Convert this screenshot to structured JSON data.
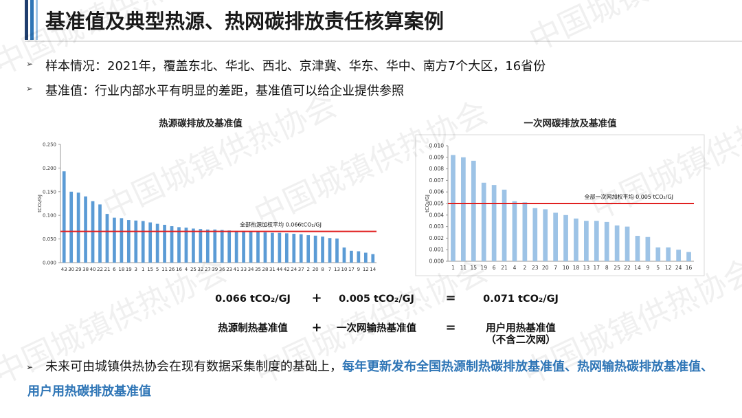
{
  "header": {
    "title": "基准值及典型热源、热网碳排放责任核算案例"
  },
  "watermark": "中国城镇供热协会",
  "bullets": [
    "样本情况：2021年，覆盖东北、华北、西北、京津冀、华东、华中、南方7个大区，16省份",
    "基准值：行业内部水平有明显的差距，基准值可以给企业提供参照"
  ],
  "chart_data": [
    {
      "type": "bar",
      "title": "热源碳排放及基准值",
      "y_label": "tCO₂/GJ",
      "color": "#5b9bd5",
      "categories": [
        "43",
        "30",
        "29",
        "38",
        "40",
        "22",
        "21",
        "6",
        "18",
        "19",
        "3",
        "1",
        "15",
        "5",
        "11",
        "26",
        "16",
        "4",
        "25",
        "32",
        "27",
        "39",
        "36",
        "23",
        "41",
        "33",
        "34",
        "35",
        "28",
        "31",
        "44",
        "42",
        "24",
        "37",
        "2",
        "20",
        "8",
        "7",
        "13",
        "10",
        "17",
        "9",
        "12",
        "14"
      ],
      "values": [
        0.193,
        0.15,
        0.148,
        0.14,
        0.13,
        0.123,
        0.103,
        0.095,
        0.094,
        0.09,
        0.089,
        0.088,
        0.085,
        0.082,
        0.08,
        0.077,
        0.075,
        0.074,
        0.072,
        0.071,
        0.07,
        0.07,
        0.069,
        0.068,
        0.067,
        0.067,
        0.066,
        0.065,
        0.064,
        0.063,
        0.063,
        0.062,
        0.061,
        0.06,
        0.058,
        0.057,
        0.055,
        0.052,
        0.051,
        0.032,
        0.025,
        0.024,
        0.021,
        0.018
      ],
      "ylim": [
        0,
        0.25
      ],
      "yticks": [
        {
          "value": 0,
          "label": "0.000"
        },
        {
          "value": 0.05,
          "label": "0.050"
        },
        {
          "value": 0.1,
          "label": "0.100"
        },
        {
          "value": 0.15,
          "label": "0.150"
        },
        {
          "value": 0.2,
          "label": "0.200"
        },
        {
          "value": 0.25,
          "label": "0.250"
        }
      ],
      "reference": {
        "value": 0.066,
        "label": "全部热源加权平均 0.066tCO₂/GJ",
        "color": "#e02020"
      }
    },
    {
      "type": "bar",
      "title": "一次网碳排放及基准值",
      "y_label": "tCO₂/GJ",
      "color": "#9dc3e6",
      "categories": [
        "1",
        "11",
        "15",
        "19",
        "6",
        "21",
        "4",
        "2",
        "23",
        "20",
        "7",
        "10",
        "18",
        "13",
        "17",
        "8",
        "25",
        "22",
        "14",
        "9",
        "5",
        "12",
        "24",
        "16"
      ],
      "values": [
        0.0092,
        0.009,
        0.0087,
        0.0068,
        0.0066,
        0.0062,
        0.0052,
        0.0051,
        0.0046,
        0.0045,
        0.0042,
        0.004,
        0.0037,
        0.0035,
        0.0035,
        0.0034,
        0.0031,
        0.003,
        0.0022,
        0.0021,
        0.0012,
        0.0012,
        0.001,
        0.0008
      ],
      "ylim": [
        0,
        0.01
      ],
      "yticks": [
        {
          "value": 0,
          "label": "0.000"
        },
        {
          "value": 0.001,
          "label": "0.001"
        },
        {
          "value": 0.002,
          "label": "0.002"
        },
        {
          "value": 0.003,
          "label": "0.003"
        },
        {
          "value": 0.004,
          "label": "0.004"
        },
        {
          "value": 0.005,
          "label": "0.005"
        },
        {
          "value": 0.006,
          "label": "0.006"
        },
        {
          "value": 0.007,
          "label": "0.007"
        },
        {
          "value": 0.008,
          "label": "0.008"
        },
        {
          "value": 0.009,
          "label": "0.009"
        },
        {
          "value": 0.01,
          "label": "0.010"
        }
      ],
      "reference": {
        "value": 0.005,
        "label": "全部一次网加权平均 0.005 tCO₂/GJ",
        "color": "#e02020"
      }
    }
  ],
  "formula": {
    "row1": [
      "0.066 tCO₂/GJ",
      "+",
      "0.005 tCO₂/GJ",
      "=",
      "0.071 tCO₂/GJ"
    ],
    "row2": [
      "热源制热基准值",
      "+",
      "一次网输热基准值",
      "=",
      "用户用热基准值"
    ],
    "note": "（不含二次网）"
  },
  "conclusion": {
    "text": "未来可由城镇供热协会在现有数据采集制度的基础上，",
    "highlight": "每年更新发布全国热源制热碳排放基准值、热网输热碳排放基准值、用户用热碳排放基准值"
  }
}
